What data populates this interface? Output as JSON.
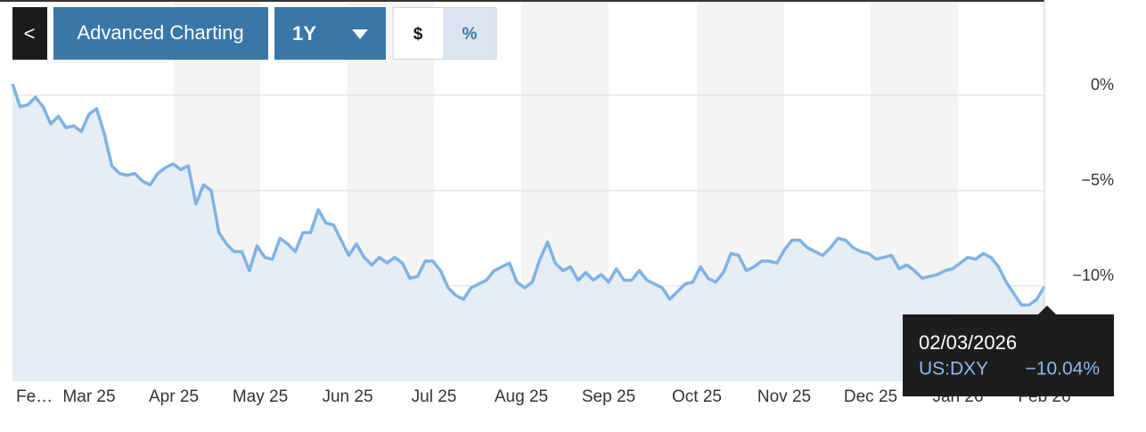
{
  "toolbar": {
    "back": "<",
    "title": "Advanced Charting",
    "range": "1Y",
    "dollar": "$",
    "percent": "%"
  },
  "chart_data": {
    "type": "line",
    "color": "#7fb2e5",
    "area_color": "#e3eaf3",
    "values": [
      0.6,
      -0.6,
      -0.5,
      -0.1,
      -0.6,
      -1.5,
      -1.1,
      -1.7,
      -1.6,
      -1.9,
      -1.0,
      -0.7,
      -2.0,
      -3.7,
      -4.1,
      -4.2,
      -4.1,
      -4.5,
      -4.7,
      -4.1,
      -3.8,
      -3.6,
      -3.9,
      -3.7,
      -5.7,
      -4.7,
      -5.0,
      -7.2,
      -7.8,
      -8.2,
      -8.2,
      -9.2,
      -7.9,
      -8.5,
      -8.6,
      -7.5,
      -7.8,
      -8.2,
      -7.2,
      -7.2,
      -6.0,
      -6.7,
      -6.8,
      -7.6,
      -8.4,
      -7.8,
      -8.5,
      -8.9,
      -8.5,
      -8.8,
      -8.5,
      -8.8,
      -9.6,
      -9.5,
      -8.7,
      -8.7,
      -9.2,
      -10.1,
      -10.5,
      -10.7,
      -10.1,
      -9.9,
      -9.7,
      -9.2,
      -9.0,
      -8.8,
      -9.8,
      -10.1,
      -9.8,
      -8.6,
      -7.7,
      -8.8,
      -9.2,
      -9.0,
      -9.7,
      -9.3,
      -9.7,
      -9.4,
      -9.8,
      -9.1,
      -9.7,
      -9.7,
      -9.2,
      -9.7,
      -9.9,
      -10.1,
      -10.7,
      -10.3,
      -9.9,
      -9.8,
      -9.0,
      -9.6,
      -9.8,
      -9.3,
      -8.3,
      -8.4,
      -9.2,
      -9.0,
      -8.7,
      -8.7,
      -8.8,
      -8.1,
      -7.6,
      -7.6,
      -8.0,
      -8.2,
      -8.4,
      -8.0,
      -7.5,
      -7.6,
      -8.0,
      -8.2,
      -8.3,
      -8.6,
      -8.5,
      -8.4,
      -9.1,
      -8.9,
      -9.2,
      -9.6,
      -9.5,
      -9.4,
      -9.2,
      -9.1,
      -8.8,
      -8.5,
      -8.6,
      -8.3,
      -8.5,
      -9.0,
      -9.8,
      -10.4,
      -11.0,
      -11.0,
      -10.7,
      -10.04
    ],
    "ylim": [
      -15,
      5
    ],
    "yticks": [
      {
        "value": 0,
        "label": "0%"
      },
      {
        "value": -5,
        "label": "−5%"
      },
      {
        "value": -10,
        "label": "−10%"
      }
    ],
    "grid": true,
    "xticks": [
      "Fe…",
      "Mar 25",
      "Apr 25",
      "May 25",
      "Jun 25",
      "Jul 25",
      "Aug 25",
      "Sep 25",
      "Oct 25",
      "Nov 25",
      "Dec 25",
      "Jan 26",
      "Feb 26"
    ],
    "tooltip": {
      "date": "02/03/2026",
      "symbol": "US:DXY",
      "label": "−10.04%"
    }
  }
}
